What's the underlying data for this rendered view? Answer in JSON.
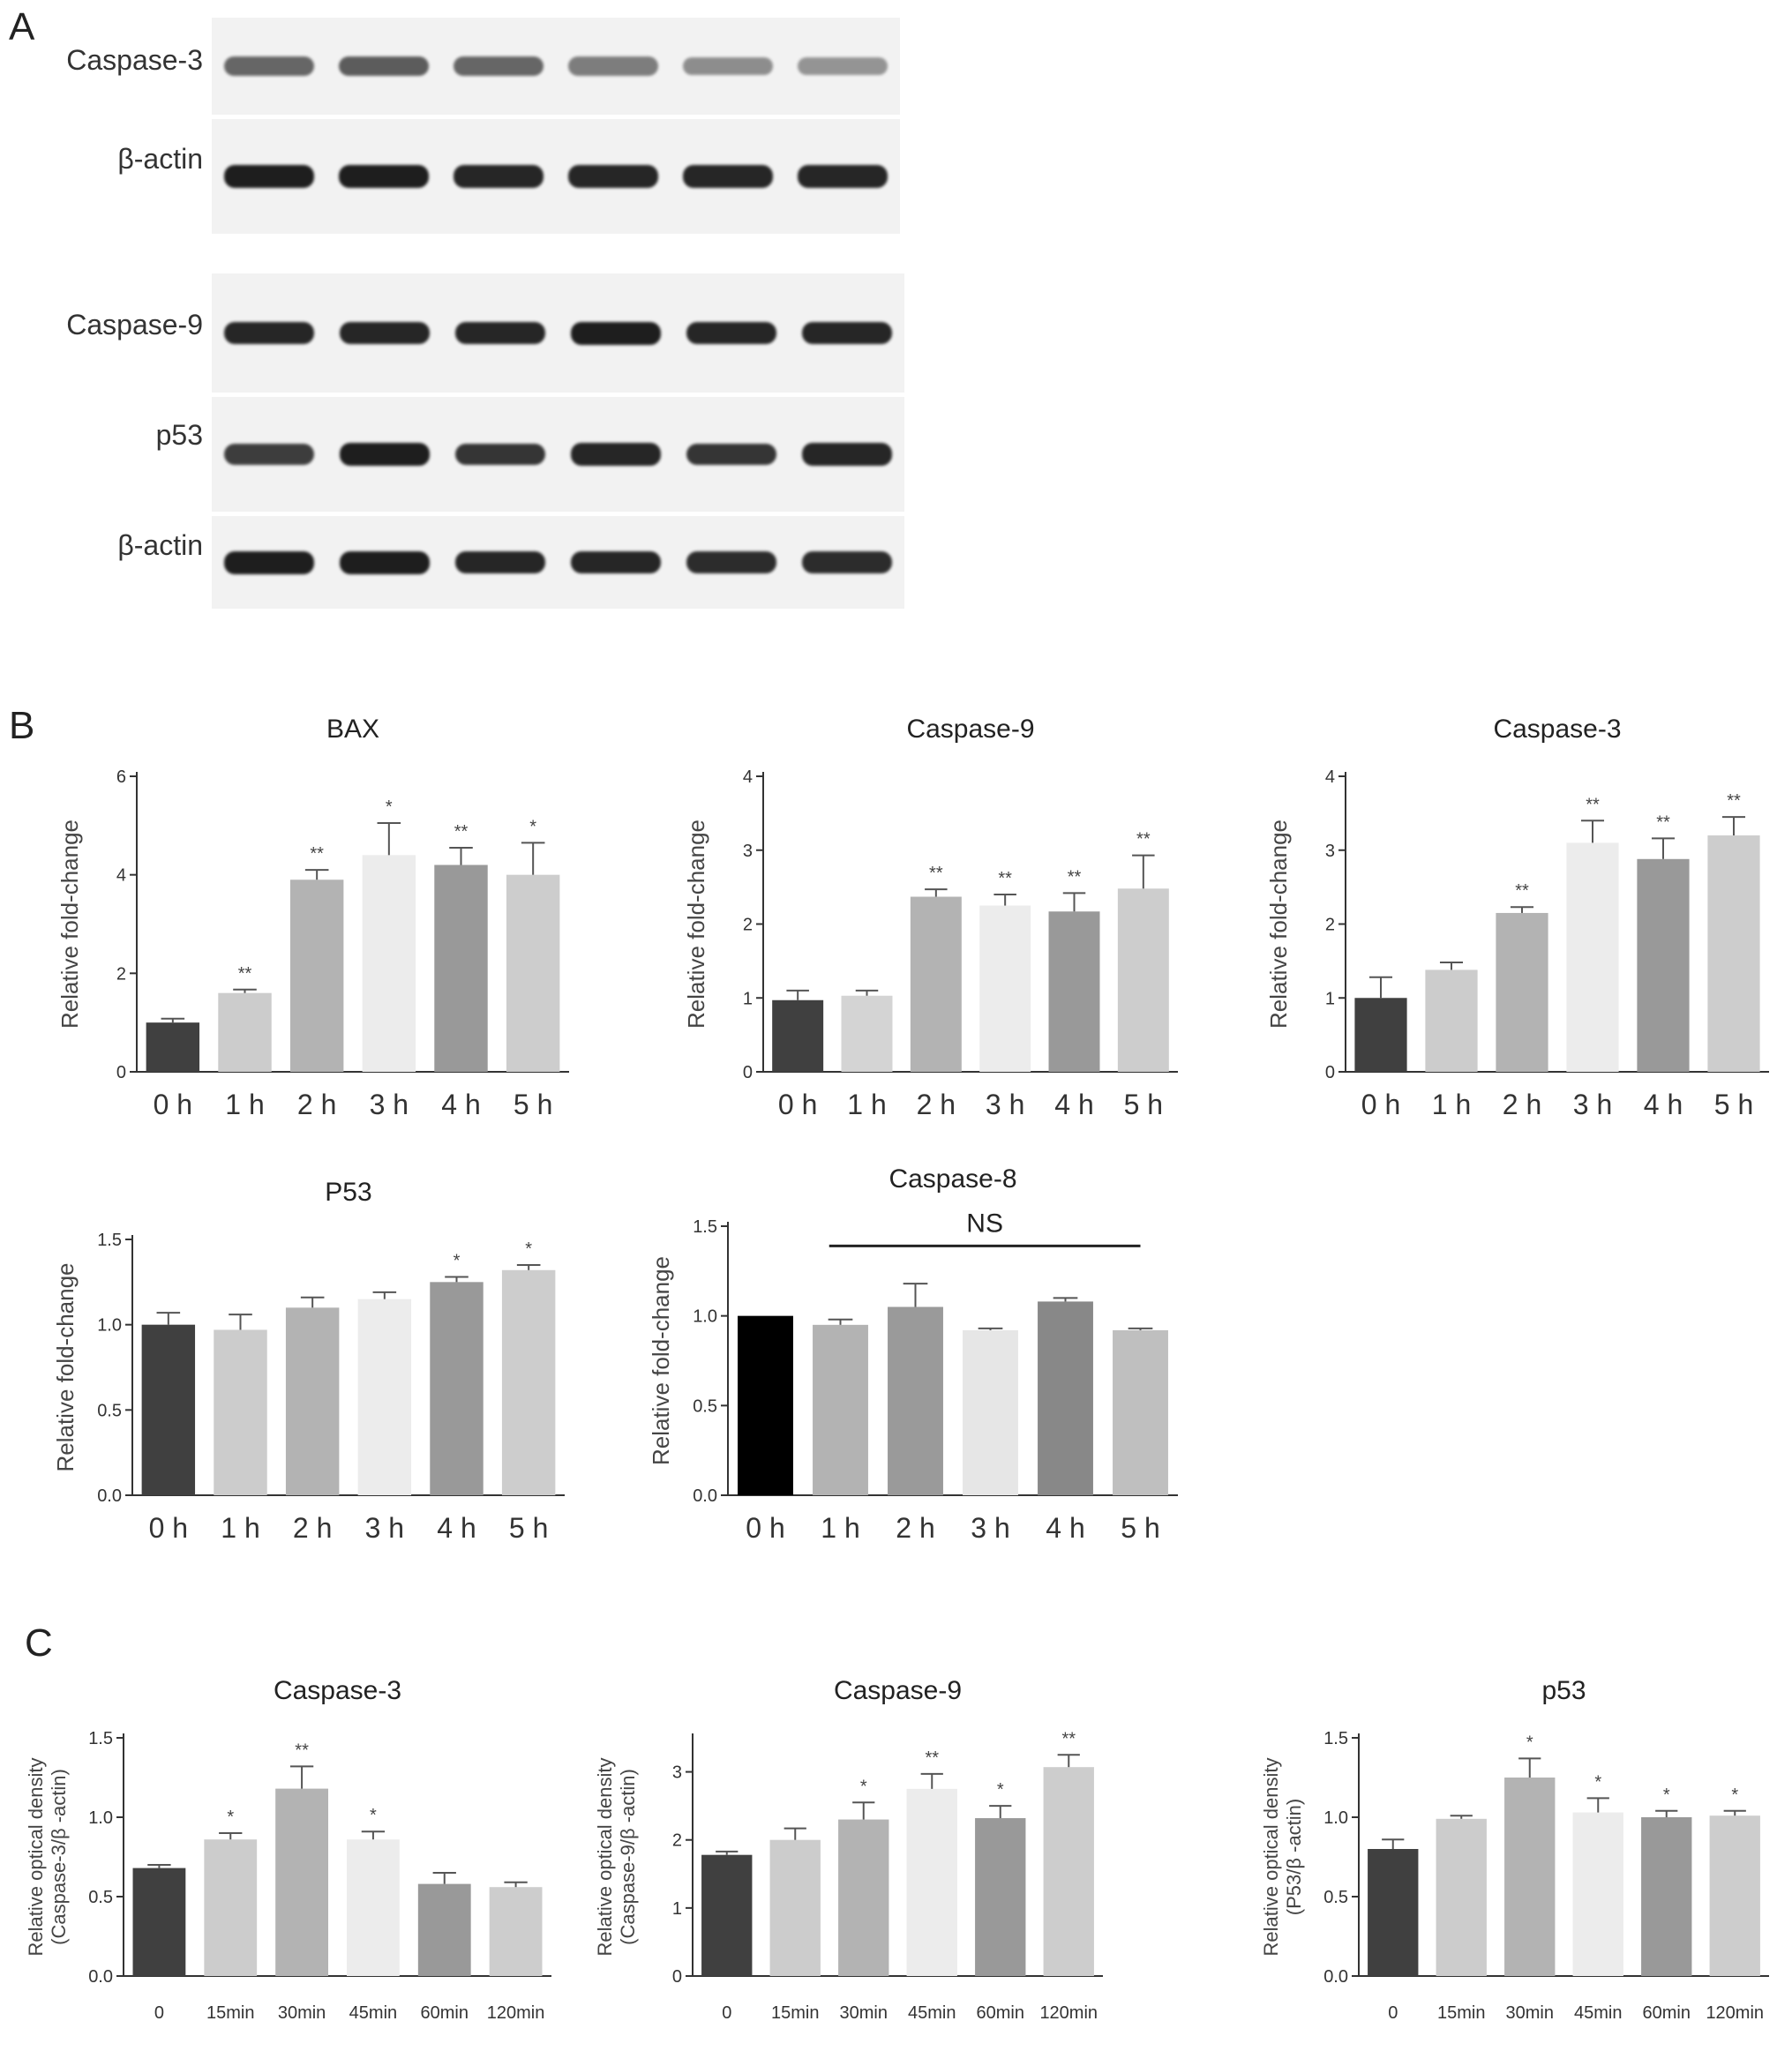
{
  "panels": {
    "A": "A",
    "B": "B",
    "C": "C"
  },
  "blots": {
    "caspase3": "Caspase-3",
    "actin1": "β-actin",
    "caspase9": "Caspase-9",
    "p53": "p53",
    "actin2": "β-actin",
    "band_intensity": {
      "caspase3": [
        0.55,
        0.6,
        0.55,
        0.4,
        0.3,
        0.25
      ],
      "actin1": [
        1,
        1,
        0.95,
        0.95,
        0.95,
        0.95
      ],
      "caspase9": [
        0.95,
        0.95,
        0.95,
        1,
        0.95,
        0.95
      ],
      "p53": [
        0.8,
        1,
        0.85,
        0.95,
        0.85,
        0.95
      ],
      "actin2": [
        1,
        1,
        0.95,
        0.95,
        0.9,
        0.9
      ]
    }
  },
  "chart_data": [
    {
      "id": "B-BAX",
      "type": "bar",
      "title": "BAX",
      "ylabel": "Relative fold-change",
      "categories": [
        "0 h",
        "1 h",
        "2 h",
        "3 h",
        "4 h",
        "5 h"
      ],
      "values": [
        1.0,
        1.6,
        3.9,
        4.4,
        4.2,
        4.0
      ],
      "errors": [
        0.08,
        0.07,
        0.2,
        0.65,
        0.35,
        0.65
      ],
      "significance": [
        "",
        "**",
        "**",
        "*",
        "**",
        "*"
      ],
      "ylim": [
        0,
        6
      ],
      "yticks": [
        "0",
        "2",
        "4",
        "6"
      ],
      "colors": [
        "#404040",
        "#cccccc",
        "#b3b3b3",
        "#ececec",
        "#999999",
        "#cdcdcd"
      ]
    },
    {
      "id": "B-Casp9",
      "type": "bar",
      "title": "Caspase-9",
      "ylabel": "Relative fold-change",
      "categories": [
        "0 h",
        "1 h",
        "2 h",
        "3 h",
        "4 h",
        "5 h"
      ],
      "values": [
        0.97,
        1.03,
        2.37,
        2.25,
        2.17,
        2.48
      ],
      "errors": [
        0.13,
        0.07,
        0.1,
        0.15,
        0.25,
        0.45
      ],
      "significance": [
        "",
        "",
        "**",
        "**",
        "**",
        "**"
      ],
      "ylim": [
        0,
        4
      ],
      "yticks": [
        "0",
        "1",
        "2",
        "3",
        "4"
      ],
      "colors": [
        "#404040",
        "#d4d4d4",
        "#b3b3b3",
        "#ececec",
        "#999999",
        "#cdcdcd"
      ]
    },
    {
      "id": "B-Casp3",
      "type": "bar",
      "title": "Caspase-3",
      "ylabel": "Relative fold-change",
      "categories": [
        "0 h",
        "1 h",
        "2 h",
        "3 h",
        "4 h",
        "5 h"
      ],
      "values": [
        1.0,
        1.38,
        2.15,
        3.1,
        2.88,
        3.2
      ],
      "errors": [
        0.28,
        0.1,
        0.08,
        0.3,
        0.28,
        0.25
      ],
      "significance": [
        "",
        "",
        "**",
        "**",
        "**",
        "**"
      ],
      "ylim": [
        0,
        4
      ],
      "yticks": [
        "0",
        "1",
        "2",
        "3",
        "4"
      ],
      "colors": [
        "#404040",
        "#cccccc",
        "#b3b3b3",
        "#ececec",
        "#999999",
        "#cdcdcd"
      ]
    },
    {
      "id": "B-P53",
      "type": "bar",
      "title": "P53",
      "ylabel": "Relative fold-change",
      "categories": [
        "0 h",
        "1 h",
        "2 h",
        "3 h",
        "4 h",
        "5 h"
      ],
      "values": [
        1.0,
        0.97,
        1.1,
        1.15,
        1.25,
        1.32
      ],
      "errors": [
        0.07,
        0.09,
        0.06,
        0.04,
        0.03,
        0.03
      ],
      "significance": [
        "",
        "",
        "",
        "",
        "*",
        "*"
      ],
      "ylim": [
        0,
        1.5
      ],
      "yticks": [
        "0.0",
        "0.5",
        "1.0",
        "1.5"
      ],
      "colors": [
        "#404040",
        "#cccccc",
        "#b3b3b3",
        "#ececec",
        "#999999",
        "#cdcdcd"
      ]
    },
    {
      "id": "B-Casp8",
      "type": "bar",
      "title": "Caspase-8",
      "ylabel": "Relative fold-change",
      "categories": [
        "0 h",
        "1 h",
        "2 h",
        "3 h",
        "4 h",
        "5 h"
      ],
      "values": [
        1.0,
        0.95,
        1.05,
        0.92,
        1.08,
        0.92
      ],
      "errors": [
        0.0,
        0.03,
        0.13,
        0.01,
        0.02,
        0.01
      ],
      "significance": [
        "",
        "",
        "",
        "",
        "",
        ""
      ],
      "annotation": "NS",
      "ylim": [
        0,
        1.5
      ],
      "yticks": [
        "0.0",
        "0.5",
        "1.0",
        "1.5"
      ],
      "colors": [
        "#000000",
        "#b3b3b3",
        "#9a9a9a",
        "#e6e6e6",
        "#888888",
        "#bfbfbf"
      ]
    },
    {
      "id": "C-Casp3",
      "type": "bar",
      "title": "Caspase-3",
      "ylabel": [
        "Relative optical density",
        "(Caspase-3/β -actin)"
      ],
      "categories": [
        "0",
        "15min",
        "30min",
        "45min",
        "60min",
        "120min"
      ],
      "values": [
        0.68,
        0.86,
        1.18,
        0.86,
        0.58,
        0.56
      ],
      "errors": [
        0.02,
        0.04,
        0.14,
        0.05,
        0.07,
        0.03
      ],
      "significance": [
        "",
        "*",
        "**",
        "*",
        "",
        ""
      ],
      "ylim": [
        0,
        1.5
      ],
      "yticks": [
        "0.0",
        "0.5",
        "1.0",
        "1.5"
      ],
      "colors": [
        "#404040",
        "#cccccc",
        "#b3b3b3",
        "#ececec",
        "#999999",
        "#cdcdcd"
      ]
    },
    {
      "id": "C-Casp9",
      "type": "bar",
      "title": "Caspase-9",
      "ylabel": [
        "Relative optical density",
        "(Caspase-9/β -actin)"
      ],
      "categories": [
        "0",
        "15min",
        "30min",
        "45min",
        "60min",
        "120min"
      ],
      "values": [
        1.78,
        2.0,
        2.3,
        2.75,
        2.32,
        3.07
      ],
      "errors": [
        0.05,
        0.17,
        0.25,
        0.22,
        0.18,
        0.18
      ],
      "significance": [
        "",
        "",
        "*",
        "**",
        "*",
        "**"
      ],
      "ylim": [
        0,
        3.5
      ],
      "yticks": [
        "0",
        "1",
        "2",
        "3"
      ],
      "colors": [
        "#404040",
        "#cccccc",
        "#b3b3b3",
        "#ececec",
        "#999999",
        "#cdcdcd"
      ]
    },
    {
      "id": "C-p53",
      "type": "bar",
      "title": "p53",
      "ylabel": [
        "Relative optical density",
        "(P53/β -actin)"
      ],
      "categories": [
        "0",
        "15min",
        "30min",
        "45min",
        "60min",
        "120min"
      ],
      "values": [
        0.8,
        0.99,
        1.25,
        1.03,
        1.0,
        1.01
      ],
      "errors": [
        0.06,
        0.02,
        0.12,
        0.09,
        0.04,
        0.03
      ],
      "significance": [
        "",
        "",
        "*",
        "*",
        "*",
        "*"
      ],
      "ylim": [
        0,
        1.5
      ],
      "yticks": [
        "0.0",
        "0.5",
        "1.0",
        "1.5"
      ],
      "colors": [
        "#404040",
        "#cccccc",
        "#b3b3b3",
        "#ececec",
        "#999999",
        "#cdcdcd"
      ]
    }
  ]
}
